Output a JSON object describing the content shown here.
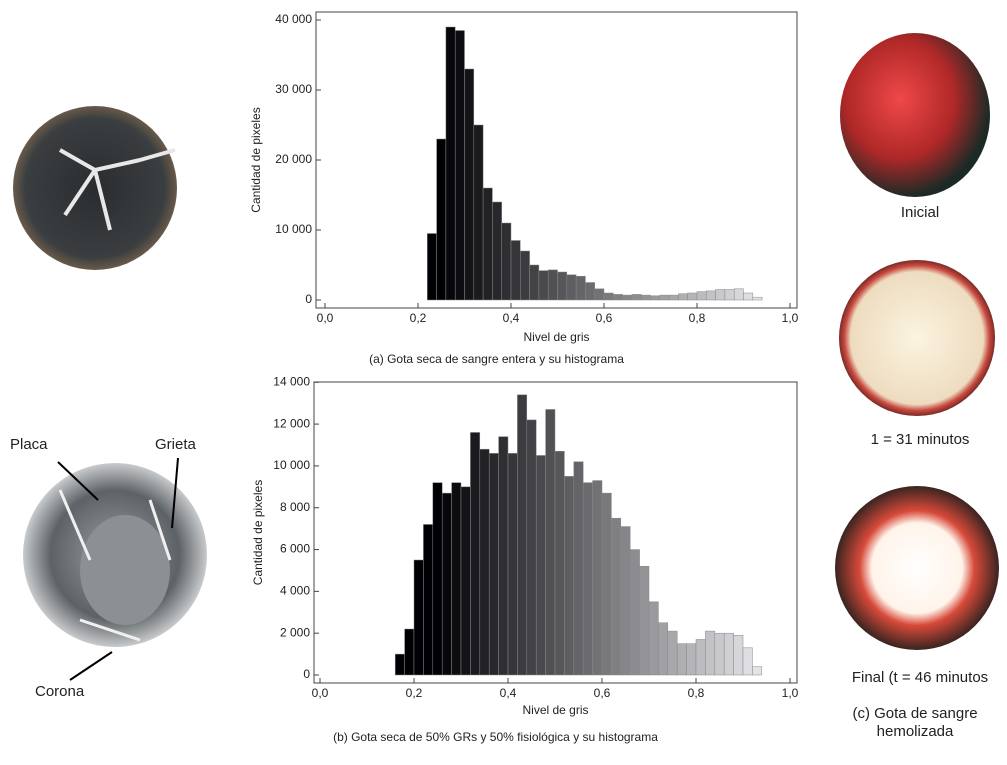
{
  "chart_data": [
    {
      "type": "histogram",
      "xlabel": "Nivel de gris",
      "ylabel": "Cantidad de pixeles",
      "colormap": "gray",
      "caption": "(a) Gota seca de sangre entera y su histograma",
      "bins": [
        0.22,
        0.24,
        0.26,
        0.28,
        0.3,
        0.32,
        0.34,
        0.36,
        0.38,
        0.4,
        0.42,
        0.44,
        0.46,
        0.48,
        0.5,
        0.52,
        0.54,
        0.56,
        0.58,
        0.6,
        0.62,
        0.64,
        0.66,
        0.68,
        0.7,
        0.72,
        0.74,
        0.76,
        0.78,
        0.8,
        0.82,
        0.84,
        0.86,
        0.88,
        0.9,
        0.92,
        0.94
      ],
      "values": [
        9500,
        23000,
        39000,
        38500,
        33000,
        25000,
        16000,
        14000,
        11000,
        8500,
        7000,
        5000,
        4200,
        4300,
        4000,
        3600,
        3400,
        2500,
        1600,
        1000,
        800,
        700,
        800,
        700,
        600,
        700,
        700,
        900,
        1000,
        1200,
        1300,
        1500,
        1500,
        1600,
        1000,
        400
      ],
      "xlim": [
        0,
        1
      ],
      "xticks": [
        {
          "value": 0,
          "label": "0,0"
        },
        {
          "value": 0.2,
          "label": "0,2"
        },
        {
          "value": 0.4,
          "label": "0,4"
        },
        {
          "value": 0.6,
          "label": "0,6"
        },
        {
          "value": 0.8,
          "label": "0,8"
        },
        {
          "value": 1,
          "label": "1,0"
        }
      ],
      "ylim": [
        0,
        41000
      ],
      "yticks": [
        0,
        {
          "value": 10000,
          "label": "10 000"
        },
        {
          "value": 20000,
          "label": "20 000"
        },
        {
          "value": 30000,
          "label": "30 000"
        },
        {
          "value": 40000,
          "label": "40 000"
        }
      ]
    },
    {
      "type": "histogram",
      "xlabel": "Nivel de gris",
      "ylabel": "Cantidad de pixeles",
      "colormap": "gray",
      "caption": "(b) Gota seca de 50% GRs y 50% fisiológica y su histograma",
      "bins": [
        0.16,
        0.18,
        0.2,
        0.22,
        0.24,
        0.26,
        0.28,
        0.3,
        0.32,
        0.34,
        0.36,
        0.38,
        0.4,
        0.42,
        0.44,
        0.46,
        0.48,
        0.5,
        0.52,
        0.54,
        0.56,
        0.58,
        0.6,
        0.62,
        0.64,
        0.66,
        0.68,
        0.7,
        0.72,
        0.74,
        0.76,
        0.78,
        0.8,
        0.82,
        0.84,
        0.86,
        0.88,
        0.9,
        0.92,
        0.94
      ],
      "values": [
        1000,
        2200,
        5500,
        7200,
        9200,
        8700,
        9200,
        9000,
        11600,
        10800,
        10600,
        11400,
        10600,
        13400,
        12200,
        10500,
        12700,
        10700,
        9500,
        10200,
        9200,
        9300,
        8700,
        7500,
        7100,
        6000,
        5200,
        3500,
        2500,
        2100,
        1500,
        1500,
        1700,
        2100,
        2000,
        2000,
        1900,
        1300,
        400
      ],
      "xlim": [
        0,
        1
      ],
      "xticks": [
        {
          "value": 0,
          "label": "0,0"
        },
        {
          "value": 0.2,
          "label": "0,2"
        },
        {
          "value": 0.4,
          "label": "0,4"
        },
        {
          "value": 0.6,
          "label": "0,6"
        },
        {
          "value": 0.8,
          "label": "0,8"
        },
        {
          "value": 1,
          "label": "1,0"
        }
      ],
      "ylim": [
        0,
        14300
      ],
      "yticks": [
        0,
        {
          "value": 2000,
          "label": "2 000"
        },
        {
          "value": 4000,
          "label": "4 000"
        },
        {
          "value": 6000,
          "label": "6 000"
        },
        {
          "value": 8000,
          "label": "8 000"
        },
        {
          "value": 10000,
          "label": "10 000"
        },
        {
          "value": 12000,
          "label": "12 000"
        },
        {
          "value": 14000,
          "label": "14 000"
        }
      ]
    }
  ],
  "labels": {
    "placa": "Placa",
    "grieta": "Grieta",
    "corona": "Corona"
  },
  "stages": [
    "Inicial",
    "1 = 31 minutos",
    "Final (t = 46 minutos"
  ],
  "caption_c": [
    "(c) Gota de sangre",
    "hemolizada"
  ]
}
